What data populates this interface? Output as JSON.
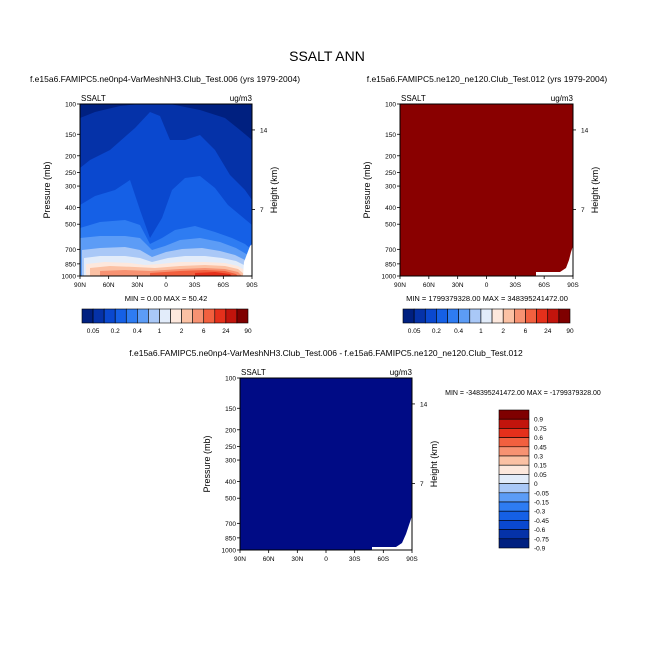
{
  "figure": {
    "title": "SSALT ANN"
  },
  "colors": {
    "div_ramp": [
      "#002080",
      "#0532a8",
      "#0a48cf",
      "#1560e6",
      "#2e7cf2",
      "#5c9cf6",
      "#a9c8f7",
      "#e2ecfa",
      "#fde8dd",
      "#fbc1a4",
      "#f79272",
      "#f2603f",
      "#e5301b",
      "#c2140c",
      "#7f0000"
    ],
    "field_max": "#890000",
    "field_min": "#000b85",
    "white_region": "#ffffff"
  },
  "chart_data": [
    {
      "type": "heatmap",
      "id": "left",
      "title": "f.e15a6.FAMIPC5.ne0np4-VarMeshNH3.Club_Test.006 (yrs 1979-2004)",
      "var_label": "SSALT",
      "units_label": "ug/m3",
      "ylabel": "Pressure (mb)",
      "ylabel_right": "Height (km)",
      "y_ticks": [
        "100",
        "150",
        "200",
        "250",
        "300",
        "400",
        "500",
        "700",
        "850",
        "1000"
      ],
      "y_right_ticks": [
        "14",
        "7"
      ],
      "x_ticks": [
        "90N",
        "60N",
        "30N",
        "0",
        "30S",
        "60S",
        "90S"
      ],
      "stats": "MIN =   0.00   MAX =  50.42",
      "colorbar_labels": [
        "0.05",
        "0.2",
        "0.4",
        "1",
        "2",
        "6",
        "24",
        "90"
      ],
      "levels": [
        0.05,
        0.1,
        0.2,
        0.3,
        0.4,
        0.6,
        1,
        1.5,
        2,
        4,
        6,
        12,
        24,
        48,
        90
      ]
    },
    {
      "type": "heatmap",
      "id": "right",
      "title": "f.e15a6.FAMIPC5.ne120_ne120.Club_Test.012 (yrs 1979-2004)",
      "var_label": "SSALT",
      "units_label": "ug/m3",
      "ylabel": "Pressure (mb)",
      "ylabel_right": "Height (km)",
      "y_ticks": [
        "100",
        "150",
        "200",
        "250",
        "300",
        "400",
        "500",
        "700",
        "850",
        "1000"
      ],
      "y_right_ticks": [
        "14",
        "7"
      ],
      "x_ticks": [
        "90N",
        "60N",
        "30N",
        "0",
        "30S",
        "60S",
        "90S"
      ],
      "stats": "MIN = 1799379328.00   MAX = 348395241472.00",
      "colorbar_labels": [
        "0.05",
        "0.2",
        "0.4",
        "1",
        "2",
        "6",
        "24",
        "90"
      ]
    },
    {
      "type": "heatmap",
      "id": "diff",
      "title": "f.e15a6.FAMIPC5.ne0np4-VarMeshNH3.Club_Test.006 - f.e15a6.FAMIPC5.ne120_ne120.Club_Test.012",
      "var_label": "SSALT",
      "units_label": "ug/m3",
      "ylabel": "Pressure (mb)",
      "ylabel_right": "Height (km)",
      "y_ticks": [
        "100",
        "150",
        "200",
        "250",
        "300",
        "400",
        "500",
        "700",
        "850",
        "1000"
      ],
      "y_right_ticks": [
        "14",
        "7"
      ],
      "x_ticks": [
        "90N",
        "60N",
        "30N",
        "0",
        "30S",
        "60S",
        "90S"
      ],
      "stats": "MIN = -348395241472.00   MAX = -1799379328.00",
      "colorbar_labels": [
        "0.9",
        "0.75",
        "0.6",
        "0.45",
        "0.3",
        "0.15",
        "0.05",
        "0",
        "-0.05",
        "-0.15",
        "-0.3",
        "-0.45",
        "-0.6",
        "-0.75",
        "-0.9"
      ]
    }
  ]
}
